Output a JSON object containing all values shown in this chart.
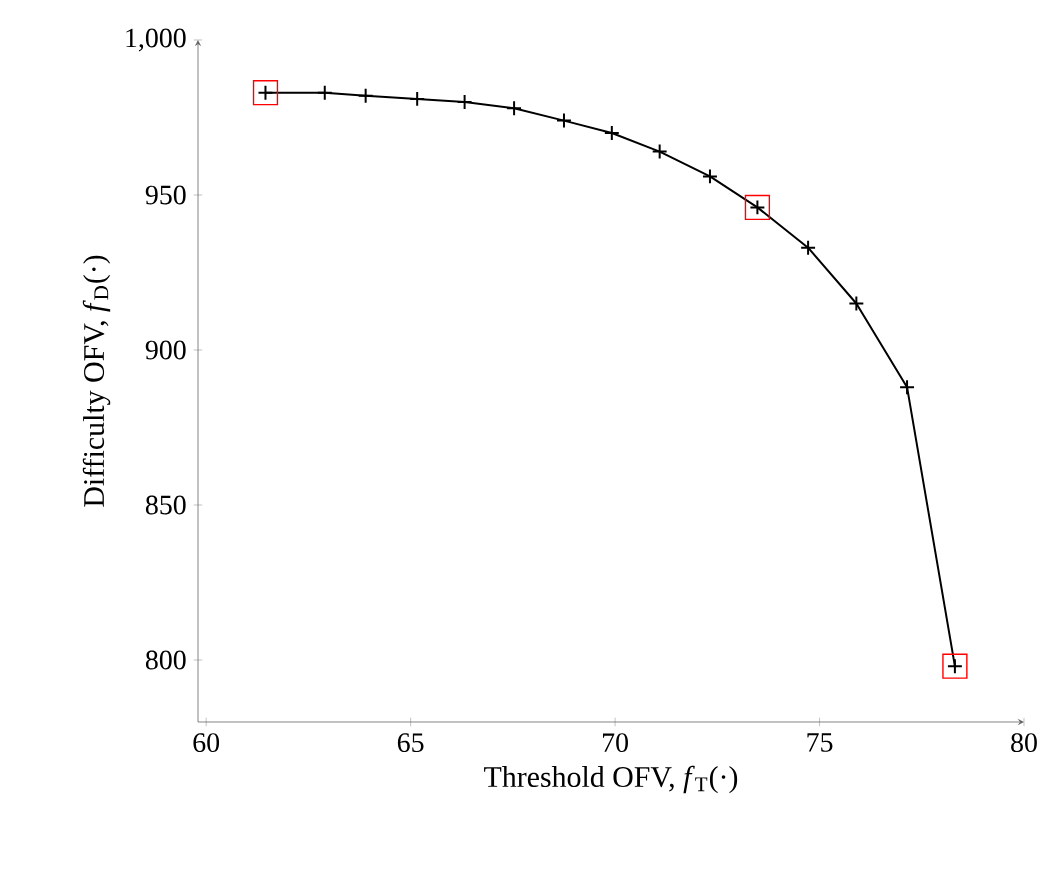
{
  "chart_data": {
    "type": "line",
    "xlabel": "Threshold OFV, *f*$_{T}$(·)",
    "ylabel": "Difficulty OFV, *f*$_{D}$(·)",
    "xlim": [
      59.8,
      80
    ],
    "ylim": [
      780,
      1000
    ],
    "xticks": [
      60,
      65,
      70,
      75,
      80
    ],
    "yticks": [
      800,
      850,
      900,
      950,
      {
        "value": 1000,
        "label": "1,000"
      }
    ],
    "grid": false,
    "series": [
      {
        "color": "#000000",
        "marker": "cross",
        "line_style": "solid",
        "x": [
          61.45,
          62.9,
          63.9,
          65.16,
          66.32,
          67.53,
          68.75,
          69.92,
          71.09,
          72.32,
          73.48,
          74.72,
          75.9,
          77.14,
          78.31
        ],
        "values": [
          983,
          983,
          982,
          981,
          980,
          978,
          974,
          970,
          964,
          956,
          946,
          933,
          915,
          888,
          798
        ]
      },
      {
        "type": "scatter",
        "color": "#ff0000",
        "marker": "square",
        "x": [
          61.45,
          73.48,
          78.31
        ],
        "values": [
          983,
          946,
          798
        ]
      }
    ]
  }
}
